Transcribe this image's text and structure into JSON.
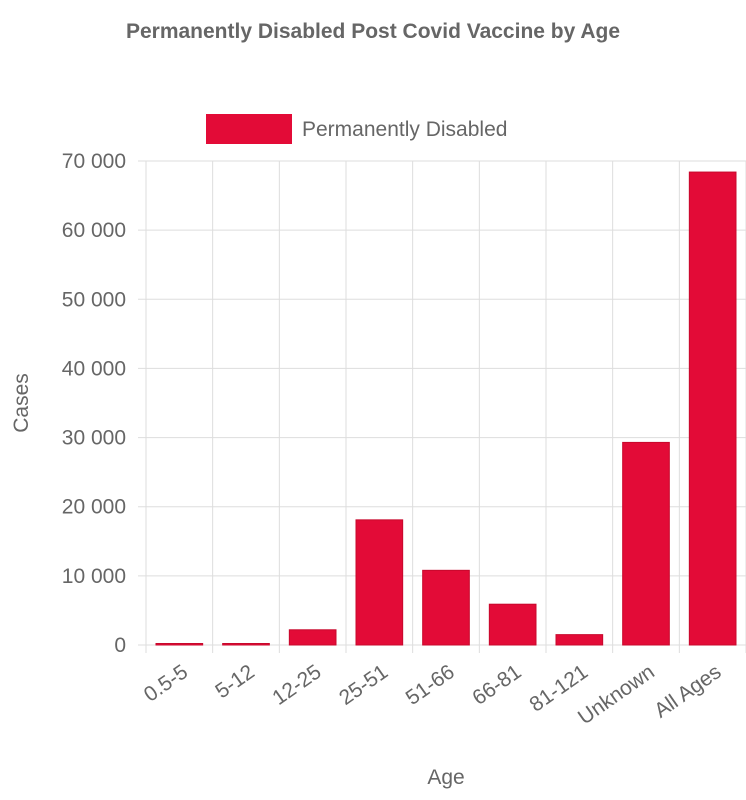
{
  "chart_data": {
    "type": "bar",
    "title": "Permanently Disabled Post Covid Vaccine by Age",
    "xlabel": "Age",
    "ylabel": "Cases",
    "categories": [
      "0.5-5",
      "5-12",
      "12-25",
      "25-51",
      "51-66",
      "66-81",
      "81-121",
      "Unknown",
      "All Ages"
    ],
    "series": [
      {
        "name": "Permanently Disabled",
        "color": "#e30b37",
        "values": [
          150,
          120,
          2200,
          18100,
          10800,
          5900,
          1500,
          29300,
          68400
        ]
      }
    ],
    "ylim": [
      0,
      70000
    ],
    "yticks": [
      0,
      10000,
      20000,
      30000,
      40000,
      50000,
      60000,
      70000
    ],
    "ytick_labels": [
      "0",
      "10 000",
      "20 000",
      "30 000",
      "40 000",
      "50 000",
      "60 000",
      "70 000"
    ],
    "grid": true,
    "legend_position": "top"
  }
}
